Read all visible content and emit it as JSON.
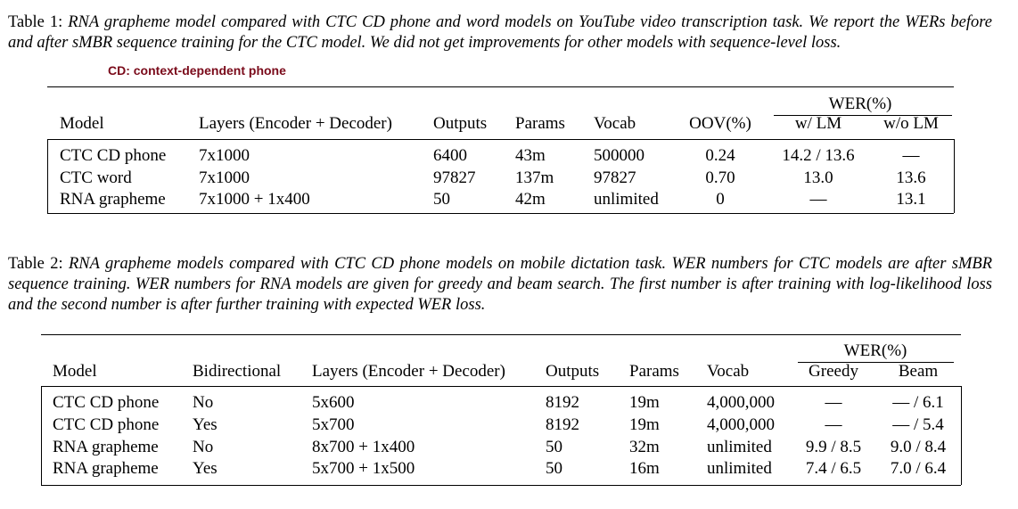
{
  "annotation": "CD: context-dependent phone",
  "table1": {
    "caption_label": "Table 1:",
    "caption_text": "RNA grapheme model compared with CTC CD phone and word models on YouTube video transcription task. We report the WERs before and after sMBR sequence training for the CTC model. We did not get improvements for other models with sequence-level loss.",
    "group_header": "WER(%)",
    "columns": [
      "Model",
      "Layers (Encoder + Decoder)",
      "Outputs",
      "Params",
      "Vocab",
      "OOV(%)",
      "w/ LM",
      "w/o LM"
    ],
    "rows": [
      [
        "CTC CD phone",
        "7x1000",
        "6400",
        "43m",
        "500000",
        "0.24",
        "14.2 / 13.6",
        "—"
      ],
      [
        "CTC word",
        "7x1000",
        "97827",
        "137m",
        "97827",
        "0.70",
        "13.0",
        "13.6"
      ],
      [
        "RNA grapheme",
        "7x1000 + 1x400",
        "50",
        "42m",
        "unlimited",
        "0",
        "—",
        "13.1"
      ]
    ]
  },
  "table2": {
    "caption_label": "Table 2:",
    "caption_text": "RNA grapheme models compared with CTC CD phone models on mobile dictation task. WER numbers for CTC models are after sMBR sequence training. WER numbers for RNA models are given for greedy and beam search. The first number is after training with log-likelihood loss and the second number is after further training with expected WER loss.",
    "group_header": "WER(%)",
    "columns": [
      "Model",
      "Bidirectional",
      "Layers (Encoder + Decoder)",
      "Outputs",
      "Params",
      "Vocab",
      "Greedy",
      "Beam"
    ],
    "rows": [
      [
        "CTC CD phone",
        "No",
        "5x600",
        "8192",
        "19m",
        "4,000,000",
        "—",
        "— / 6.1"
      ],
      [
        "CTC CD phone",
        "Yes",
        "5x700",
        "8192",
        "19m",
        "4,000,000",
        "—",
        "— / 5.4"
      ],
      [
        "RNA grapheme",
        "No",
        "8x700 + 1x400",
        "50",
        "32m",
        "unlimited",
        "9.9 / 8.5",
        "9.0 / 8.4"
      ],
      [
        "RNA grapheme",
        "Yes",
        "5x700 + 1x500",
        "50",
        "16m",
        "unlimited",
        "7.4 / 6.5",
        "7.0 / 6.4"
      ]
    ]
  }
}
